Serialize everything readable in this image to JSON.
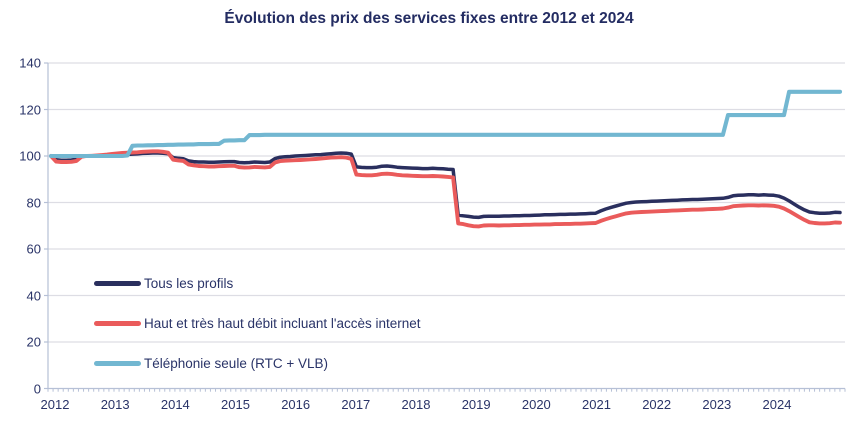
{
  "title": "Évolution des prix des services fixes entre 2012 et 2024",
  "colors": {
    "text_navy": "#2a3468",
    "gridline": "#dddde4",
    "axis": "#b6c0d6",
    "series_navy": "#2a2f5e",
    "series_red": "#ea5b5b",
    "series_blue": "#72b7d1"
  },
  "chart_data": {
    "type": "line",
    "title": "Évolution des prix des services fixes entre 2012 et 2024",
    "x_frequency": "monthly",
    "x_start": "2012-01",
    "x_end": "2024-12",
    "x_tick_labels": [
      "2012",
      "2013",
      "2014",
      "2015",
      "2016",
      "2017",
      "2018",
      "2019",
      "2020",
      "2021",
      "2022",
      "2023",
      "2024"
    ],
    "y_ticks": [
      0,
      20,
      40,
      60,
      80,
      100,
      120,
      140
    ],
    "ylim": [
      0,
      140
    ],
    "grid": "horizontal",
    "legend_position": "inside-bottom-left",
    "series": [
      {
        "name": "Tous les profils",
        "color": "#2a2f5e",
        "values": [
          100,
          98.4,
          98.2,
          98.2,
          98.3,
          98.6,
          99.8,
          100,
          100.1,
          100.1,
          100.1,
          100.2,
          100.4,
          100.5,
          100.6,
          100.7,
          100.8,
          100.9,
          101.1,
          101.2,
          101.3,
          101.3,
          101.2,
          101,
          99.3,
          99,
          98.8,
          97.9,
          97.6,
          97.4,
          97.4,
          97.3,
          97.3,
          97.4,
          97.5,
          97.6,
          97.6,
          97.2,
          97.1,
          97.2,
          97.4,
          97.3,
          97.2,
          97.4,
          98.9,
          99.5,
          99.7,
          99.8,
          100,
          100.1,
          100.2,
          100.4,
          100.5,
          100.6,
          100.8,
          101,
          101.2,
          101.3,
          101.2,
          100.8,
          95.3,
          95.1,
          95,
          95,
          95.2,
          95.6,
          95.7,
          95.5,
          95.2,
          95,
          94.9,
          94.8,
          94.7,
          94.6,
          94.6,
          94.7,
          94.6,
          94.5,
          94.3,
          94.2,
          74.6,
          74.3,
          74,
          73.7,
          73.6,
          74,
          74.1,
          74.1,
          74.1,
          74.2,
          74.2,
          74.3,
          74.3,
          74.4,
          74.4,
          74.5,
          74.6,
          74.7,
          74.7,
          74.8,
          74.9,
          74.9,
          75,
          75,
          75.1,
          75.2,
          75.3,
          75.4,
          76.4,
          77.2,
          77.9,
          78.5,
          79.1,
          79.7,
          80,
          80.2,
          80.3,
          80.4,
          80.5,
          80.6,
          80.7,
          80.8,
          80.9,
          81,
          81.1,
          81.2,
          81.3,
          81.3,
          81.4,
          81.5,
          81.6,
          81.7,
          81.8,
          82.2,
          82.9,
          83.1,
          83.2,
          83.3,
          83.3,
          83.2,
          83.3,
          83.2,
          83.1,
          82.7,
          81.9,
          80.7,
          79.3,
          78,
          76.8,
          75.9,
          75.6,
          75.4,
          75.4,
          75.5,
          75.8,
          75.7
        ]
      },
      {
        "name": "Haut et très haut débit incluant l'accès internet",
        "color": "#ea5b5b",
        "values": [
          100,
          97.6,
          97.4,
          97.4,
          97.5,
          97.9,
          99.7,
          100,
          100.1,
          100.2,
          100.4,
          100.6,
          100.9,
          101.1,
          101.3,
          101.4,
          101.5,
          101.6,
          101.8,
          101.9,
          102,
          102,
          101.8,
          101.4,
          98.4,
          98.1,
          97.9,
          96.4,
          96,
          95.7,
          95.6,
          95.5,
          95.5,
          95.6,
          95.7,
          95.8,
          95.8,
          95.2,
          95,
          95.1,
          95.3,
          95.2,
          95.1,
          95.3,
          97.2,
          97.8,
          98,
          98.1,
          98.2,
          98.3,
          98.4,
          98.6,
          98.7,
          98.9,
          99.1,
          99.3,
          99.4,
          99.5,
          99.3,
          98.8,
          92,
          91.8,
          91.7,
          91.7,
          91.9,
          92.3,
          92.4,
          92.2,
          91.9,
          91.7,
          91.6,
          91.5,
          91.4,
          91.3,
          91.3,
          91.4,
          91.3,
          91.2,
          91,
          90.8,
          71,
          70.7,
          70.2,
          69.8,
          69.7,
          70.1,
          70.2,
          70.2,
          70.1,
          70.2,
          70.2,
          70.3,
          70.3,
          70.4,
          70.4,
          70.5,
          70.5,
          70.6,
          70.6,
          70.7,
          70.7,
          70.8,
          70.8,
          70.9,
          70.9,
          71,
          71.1,
          71.2,
          72.1,
          72.8,
          73.5,
          74.1,
          74.7,
          75.3,
          75.6,
          75.8,
          75.9,
          76,
          76.1,
          76.2,
          76.3,
          76.4,
          76.5,
          76.6,
          76.7,
          76.8,
          76.9,
          76.9,
          77,
          77.1,
          77.2,
          77.3,
          77.4,
          77.8,
          78.4,
          78.6,
          78.7,
          78.8,
          78.8,
          78.7,
          78.8,
          78.7,
          78.6,
          78.2,
          77.4,
          76.3,
          75,
          73.7,
          72.5,
          71.5,
          71.2,
          71,
          71,
          71.1,
          71.4,
          71.3
        ]
      },
      {
        "name": "Téléphonie seule (RTC + VLB)",
        "color": "#72b7d1",
        "values": [
          100,
          100,
          100,
          100,
          100,
          100,
          100,
          100,
          100,
          100,
          100,
          100,
          100,
          100,
          100,
          100.2,
          104.4,
          104.5,
          104.5,
          104.6,
          104.6,
          104.7,
          104.7,
          104.8,
          104.8,
          104.9,
          104.9,
          105,
          105,
          105.1,
          105.1,
          105.1,
          105.2,
          105.2,
          106.6,
          106.7,
          106.7,
          106.8,
          106.8,
          109,
          109,
          109,
          109.1,
          109.1,
          109.1,
          109.1,
          109.1,
          109.1,
          109.1,
          109.1,
          109.1,
          109.1,
          109.1,
          109.1,
          109.1,
          109.1,
          109.1,
          109.1,
          109.1,
          109.1,
          109.1,
          109.1,
          109.1,
          109.1,
          109.1,
          109.1,
          109.1,
          109.1,
          109.1,
          109.1,
          109.1,
          109.1,
          109.1,
          109.1,
          109.1,
          109.1,
          109.1,
          109.1,
          109.1,
          109.1,
          109.1,
          109.1,
          109.1,
          109.1,
          109.1,
          109.1,
          109.1,
          109.1,
          109.1,
          109.1,
          109.1,
          109.1,
          109.1,
          109.1,
          109.1,
          109.1,
          109.1,
          109.1,
          109.1,
          109.1,
          109.1,
          109.1,
          109.1,
          109.1,
          109.1,
          109.1,
          109.1,
          109.1,
          109.1,
          109.1,
          109.1,
          109.1,
          109.1,
          109.1,
          109.1,
          109.1,
          109.1,
          109.1,
          109.1,
          109.1,
          109.1,
          109.1,
          109.1,
          109.1,
          109.1,
          109.1,
          109.1,
          109.1,
          109.1,
          109.1,
          109.1,
          109.1,
          109.1,
          117.6,
          117.6,
          117.6,
          117.6,
          117.6,
          117.6,
          117.6,
          117.6,
          117.6,
          117.6,
          117.6,
          117.6,
          127.6,
          127.6,
          127.6,
          127.6,
          127.6,
          127.6,
          127.6,
          127.6,
          127.6,
          127.6,
          127.6
        ]
      }
    ]
  }
}
